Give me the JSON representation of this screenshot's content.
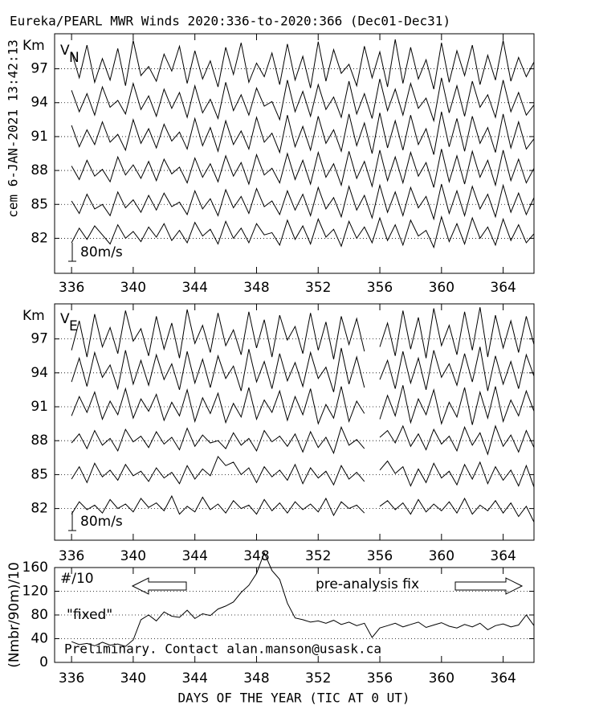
{
  "chart_data": [
    {
      "type": "line",
      "title": "Eureka/PEARL MWR Winds 2020:336-to-2020:366 (Dec01-Dec31)",
      "side_label": "cem 6-JAN-2021 13:42:13",
      "ylabel": "Km",
      "panel_label": "V",
      "panel_label_sub": "N",
      "scale_label": "80m/s",
      "xlim": [
        334.9,
        366.0
      ],
      "xticks": [
        336,
        340,
        344,
        348,
        352,
        356,
        360,
        364
      ],
      "ylim": [
        78.9,
        100.1
      ],
      "yticks": [
        82,
        85,
        88,
        91,
        94,
        97
      ],
      "grid": true,
      "x": [
        336,
        336.5,
        337,
        337.5,
        338,
        338.5,
        339,
        339.5,
        340,
        340.5,
        341,
        341.5,
        342,
        342.5,
        343,
        343.5,
        344,
        344.5,
        345,
        345.5,
        346,
        346.5,
        347,
        347.5,
        348,
        348.5,
        349,
        349.5,
        350,
        350.5,
        351,
        351.5,
        352,
        352.5,
        353,
        353.5,
        354,
        354.5,
        355,
        355.5,
        356,
        356.5,
        357,
        357.5,
        358,
        358.5,
        359,
        359.5,
        360,
        360.5,
        361,
        361.5,
        362,
        362.5,
        363,
        363.5,
        364,
        364.5,
        365,
        365.5,
        366
      ],
      "series": [
        {
          "color": "#000000",
          "values": [
            98.5,
            96.2,
            99.1,
            95.8,
            97.9,
            96.0,
            98.8,
            95.5,
            99.5,
            96.4,
            97.2,
            95.9,
            98.3,
            96.8,
            99.0,
            95.7,
            98.6,
            96.1,
            97.7,
            95.4,
            98.9,
            96.5,
            99.3,
            95.8,
            97.5,
            96.3,
            98.4,
            95.6,
            99.2,
            96.0,
            98.1,
            95.3,
            99.4,
            95.9,
            98.7,
            96.6,
            97.4,
            95.5,
            99.0,
            96.2,
            98.5,
            95.4,
            99.6,
            95.7,
            98.9,
            96.1,
            97.8,
            95.2,
            99.3,
            95.8,
            98.6,
            96.4,
            99.1,
            95.6,
            98.2,
            96.0,
            99.5,
            95.9,
            98.0,
            96.3,
            97.6
          ]
        },
        {
          "color": "#000000",
          "values": [
            95.1,
            93.2,
            94.8,
            92.9,
            95.4,
            93.6,
            94.2,
            93.0,
            95.7,
            93.4,
            94.6,
            92.8,
            95.2,
            93.5,
            94.9,
            92.7,
            95.5,
            93.1,
            94.3,
            92.6,
            95.8,
            93.3,
            94.7,
            92.9,
            95.3,
            93.7,
            94.1,
            92.5,
            96.0,
            93.2,
            95.0,
            92.8,
            95.6,
            93.4,
            94.5,
            92.7,
            95.9,
            93.0,
            94.8,
            92.6,
            96.1,
            93.3,
            95.2,
            92.9,
            95.7,
            93.5,
            94.4,
            92.4,
            96.2,
            93.1,
            95.5,
            92.8,
            95.9,
            93.6,
            94.7,
            92.7,
            96.0,
            93.2,
            94.9,
            92.9,
            93.8
          ]
        },
        {
          "color": "#000000",
          "values": [
            92.0,
            90.1,
            91.6,
            90.3,
            92.3,
            90.5,
            91.2,
            89.8,
            92.5,
            90.4,
            91.7,
            90.0,
            92.1,
            90.6,
            91.4,
            89.9,
            92.6,
            90.2,
            91.8,
            89.7,
            92.4,
            90.3,
            91.5,
            89.9,
            92.7,
            90.5,
            91.3,
            89.6,
            92.9,
            90.1,
            91.9,
            89.8,
            92.8,
            90.4,
            91.6,
            89.7,
            93.0,
            90.2,
            92.2,
            89.5,
            93.1,
            90.0,
            92.4,
            89.8,
            92.9,
            90.3,
            91.7,
            89.4,
            93.2,
            90.1,
            92.6,
            89.7,
            92.8,
            90.4,
            91.8,
            89.6,
            93.0,
            90.0,
            92.3,
            89.9,
            90.8
          ]
        },
        {
          "color": "#000000",
          "values": [
            88.4,
            87.2,
            88.9,
            87.5,
            88.1,
            87.0,
            89.2,
            87.6,
            88.5,
            87.3,
            88.8,
            87.1,
            89.0,
            87.7,
            88.3,
            86.9,
            89.1,
            87.4,
            88.6,
            87.0,
            89.3,
            87.5,
            88.7,
            86.8,
            89.4,
            87.6,
            88.2,
            86.9,
            89.5,
            87.2,
            88.9,
            86.8,
            89.6,
            87.4,
            88.6,
            86.7,
            89.7,
            87.3,
            88.8,
            86.6,
            89.8,
            87.1,
            89.2,
            86.9,
            89.6,
            87.5,
            88.7,
            86.5,
            89.9,
            87.0,
            89.3,
            86.8,
            89.7,
            87.4,
            88.9,
            86.7,
            89.8,
            87.1,
            89.0,
            86.9,
            88.2
          ]
        },
        {
          "color": "#000000",
          "values": [
            85.3,
            84.2,
            85.9,
            84.6,
            85.0,
            84.0,
            86.1,
            84.7,
            85.4,
            84.3,
            85.8,
            84.5,
            86.0,
            84.8,
            85.2,
            84.1,
            86.2,
            84.6,
            85.5,
            84.0,
            86.3,
            84.7,
            85.7,
            84.2,
            86.4,
            84.8,
            85.3,
            84.1,
            86.2,
            84.5,
            85.9,
            84.0,
            86.5,
            84.6,
            85.6,
            83.9,
            86.6,
            84.5,
            85.8,
            83.8,
            86.7,
            84.3,
            86.1,
            84.0,
            86.5,
            84.7,
            85.7,
            83.7,
            86.8,
            84.2,
            86.2,
            84.0,
            86.6,
            84.6,
            85.9,
            83.9,
            86.7,
            84.3,
            86.0,
            84.1,
            85.6
          ]
        },
        {
          "color": "#000000",
          "values": [
            81.6,
            82.9,
            81.9,
            83.1,
            82.3,
            81.5,
            83.2,
            82.0,
            82.6,
            81.7,
            83.0,
            82.1,
            83.3,
            81.8,
            82.7,
            81.6,
            83.4,
            82.2,
            82.8,
            81.5,
            83.5,
            82.0,
            82.9,
            81.6,
            83.3,
            82.3,
            82.5,
            81.4,
            83.6,
            81.9,
            83.1,
            81.5,
            83.7,
            82.1,
            82.8,
            81.3,
            83.5,
            82.0,
            83.0,
            81.6,
            83.8,
            81.8,
            83.2,
            81.4,
            83.6,
            82.2,
            82.7,
            81.2,
            83.9,
            81.7,
            83.3,
            81.5,
            83.8,
            82.0,
            83.0,
            81.4,
            83.7,
            81.8,
            83.2,
            81.6,
            82.4
          ]
        }
      ]
    },
    {
      "type": "line",
      "ylabel": "Km",
      "panel_label": "V",
      "panel_label_sub": "E",
      "scale_label": "80m/s",
      "xlim": [
        334.9,
        366.0
      ],
      "xticks": [
        336,
        340,
        344,
        348,
        352,
        356,
        360,
        364
      ],
      "ylim": [
        79.2,
        100.1
      ],
      "yticks": [
        82,
        85,
        88,
        91,
        94,
        97
      ],
      "grid": true,
      "x": [
        336,
        336.5,
        337,
        337.5,
        338,
        338.5,
        339,
        339.5,
        340,
        340.5,
        341,
        341.5,
        342,
        342.5,
        343,
        343.5,
        344,
        344.5,
        345,
        345.5,
        346,
        346.5,
        347,
        347.5,
        348,
        348.5,
        349,
        349.5,
        350,
        350.5,
        351,
        351.5,
        352,
        352.5,
        353,
        353.5,
        354,
        354.5,
        355,
        355.5,
        356,
        356.5,
        357,
        357.5,
        358,
        358.5,
        359,
        359.5,
        360,
        360.5,
        361,
        361.5,
        362,
        362.5,
        363,
        363.5,
        364,
        364.5,
        365,
        365.5,
        366
      ],
      "series": [
        {
          "color": "#000000",
          "values": [
            96.0,
            98.6,
            95.4,
            99.2,
            96.3,
            98.0,
            95.7,
            99.5,
            96.8,
            97.9,
            95.5,
            99.0,
            96.1,
            98.4,
            95.3,
            99.6,
            96.6,
            98.2,
            95.8,
            99.3,
            96.4,
            97.8,
            95.6,
            99.4,
            96.2,
            98.7,
            95.4,
            99.1,
            96.9,
            98.1,
            95.7,
            99.3,
            96.0,
            98.5,
            95.2,
            99.0,
            96.5,
            98.8,
            95.9,
            null,
            96.3,
            98.4,
            95.5,
            99.5,
            96.1,
            98.9,
            95.3,
            99.7,
            96.4,
            98.2,
            95.6,
            99.4,
            96.0,
            99.8,
            95.4,
            99.1,
            96.2,
            98.6,
            95.8,
            99.0,
            96.5
          ]
        },
        {
          "color": "#000000",
          "values": [
            93.2,
            95.3,
            92.8,
            95.8,
            93.6,
            94.7,
            92.6,
            96.0,
            93.0,
            95.1,
            92.9,
            95.6,
            93.4,
            94.8,
            92.5,
            95.9,
            93.1,
            95.2,
            92.7,
            95.5,
            93.5,
            94.6,
            92.4,
            96.1,
            93.2,
            95.0,
            92.6,
            95.7,
            93.3,
            94.9,
            92.8,
            95.8,
            93.5,
            94.5,
            92.3,
            96.2,
            93.0,
            95.4,
            92.7,
            null,
            93.4,
            95.1,
            92.6,
            95.9,
            93.1,
            95.3,
            92.5,
            96.0,
            93.6,
            94.8,
            92.9,
            95.7,
            93.2,
            96.3,
            92.4,
            95.5,
            93.0,
            95.0,
            92.6,
            95.6,
            93.7
          ]
        },
        {
          "color": "#000000",
          "values": [
            90.2,
            91.9,
            90.5,
            92.3,
            89.9,
            91.5,
            90.3,
            92.6,
            90.0,
            91.7,
            90.6,
            92.1,
            89.8,
            91.4,
            90.2,
            92.5,
            89.7,
            91.8,
            90.4,
            92.2,
            89.6,
            91.3,
            90.1,
            92.7,
            89.9,
            91.6,
            90.5,
            92.4,
            89.8,
            91.9,
            90.3,
            92.6,
            89.5,
            91.2,
            90.0,
            92.8,
            89.7,
            91.5,
            90.4,
            null,
            89.9,
            92.0,
            90.2,
            92.9,
            89.6,
            91.7,
            90.3,
            92.5,
            89.5,
            91.4,
            90.1,
            92.7,
            89.4,
            92.3,
            90.0,
            92.8,
            89.7,
            91.6,
            90.2,
            92.4,
            90.6
          ]
        },
        {
          "color": "#000000",
          "values": [
            87.8,
            88.6,
            87.3,
            88.9,
            87.6,
            88.2,
            87.1,
            89.0,
            87.9,
            88.4,
            87.4,
            88.8,
            87.7,
            88.3,
            87.2,
            89.1,
            87.5,
            88.5,
            87.8,
            88.0,
            87.3,
            88.7,
            87.6,
            88.2,
            87.1,
            88.9,
            87.9,
            88.4,
            87.5,
            88.6,
            87.0,
            88.8,
            87.4,
            88.3,
            86.9,
            89.2,
            87.6,
            88.1,
            87.3,
            null,
            88.3,
            88.9,
            87.8,
            89.3,
            87.5,
            88.6,
            87.2,
            89.0,
            87.7,
            88.4,
            87.1,
            89.2,
            87.6,
            88.7,
            86.8,
            89.3,
            87.5,
            88.5,
            87.0,
            88.9,
            87.4
          ]
        },
        {
          "color": "#000000",
          "values": [
            84.6,
            85.7,
            84.3,
            86.0,
            84.8,
            85.4,
            84.5,
            85.9,
            84.9,
            85.3,
            84.4,
            85.6,
            84.7,
            85.2,
            84.2,
            85.8,
            84.6,
            85.5,
            84.9,
            86.6,
            85.8,
            86.1,
            85.0,
            85.6,
            84.3,
            85.7,
            84.8,
            85.4,
            84.5,
            85.9,
            84.2,
            85.6,
            84.7,
            85.3,
            84.1,
            85.8,
            84.6,
            85.2,
            84.4,
            null,
            85.4,
            86.2,
            85.1,
            85.7,
            84.0,
            85.5,
            84.3,
            86.0,
            84.7,
            85.3,
            84.1,
            85.9,
            84.6,
            86.1,
            84.2,
            85.7,
            84.5,
            85.4,
            84.0,
            85.8,
            83.9
          ]
        },
        {
          "color": "#000000",
          "values": [
            81.5,
            82.6,
            81.9,
            82.3,
            81.6,
            82.8,
            82.0,
            82.4,
            81.7,
            82.9,
            82.1,
            82.5,
            81.8,
            83.1,
            81.5,
            82.2,
            81.7,
            83.0,
            81.9,
            82.4,
            81.6,
            82.7,
            82.0,
            82.3,
            81.5,
            82.8,
            81.8,
            82.5,
            81.6,
            82.6,
            81.9,
            82.4,
            81.7,
            82.9,
            81.4,
            82.6,
            82.0,
            82.3,
            81.6,
            null,
            82.2,
            82.7,
            81.9,
            82.5,
            81.5,
            82.8,
            81.7,
            82.4,
            81.8,
            82.6,
            81.6,
            82.9,
            81.5,
            82.3,
            81.8,
            82.7,
            81.6,
            82.5,
            81.3,
            82.2,
            80.8
          ]
        }
      ]
    },
    {
      "type": "line",
      "ylabel": "(Nmbr/90m)/10",
      "xlabel": "DAYS OF THE YEAR (TIC AT 0 UT)",
      "count_label": "#/10",
      "fix_label": "pre-analysis fix",
      "fixed_label": "\"fixed\"",
      "contact": "Preliminary. Contact alan.manson@usask.ca",
      "xlim": [
        334.9,
        366.0
      ],
      "xticks": [
        336,
        340,
        344,
        348,
        352,
        356,
        360,
        364
      ],
      "ylim": [
        0,
        160
      ],
      "yticks": [
        0,
        40,
        80,
        120,
        160
      ],
      "grid": true,
      "x": [
        336,
        336.5,
        337,
        337.5,
        338,
        338.5,
        339,
        339.5,
        340,
        340.5,
        341,
        341.5,
        342,
        342.5,
        343,
        343.5,
        344,
        344.5,
        345,
        345.5,
        346,
        346.5,
        347,
        347.5,
        348,
        348.5,
        349,
        349.5,
        350,
        350.5,
        351,
        351.5,
        352,
        352.5,
        353,
        353.5,
        354,
        354.5,
        355,
        355.5,
        356,
        356.5,
        357,
        357.5,
        358,
        358.5,
        359,
        359.5,
        360,
        360.5,
        361,
        361.5,
        362,
        362.5,
        363,
        363.5,
        364,
        364.5,
        365,
        365.5,
        366
      ],
      "series": [
        {
          "color": "#000000",
          "values": [
            35,
            30,
            32,
            28,
            34,
            29,
            31,
            27,
            38,
            72,
            80,
            70,
            85,
            78,
            76,
            88,
            74,
            82,
            79,
            90,
            95,
            102,
            118,
            130,
            150,
            185,
            155,
            140,
            100,
            75,
            72,
            68,
            70,
            66,
            71,
            64,
            68,
            62,
            66,
            42,
            58,
            62,
            66,
            60,
            64,
            68,
            59,
            63,
            67,
            61,
            58,
            64,
            60,
            66,
            55,
            62,
            65,
            60,
            63,
            80,
            62
          ]
        }
      ]
    }
  ]
}
